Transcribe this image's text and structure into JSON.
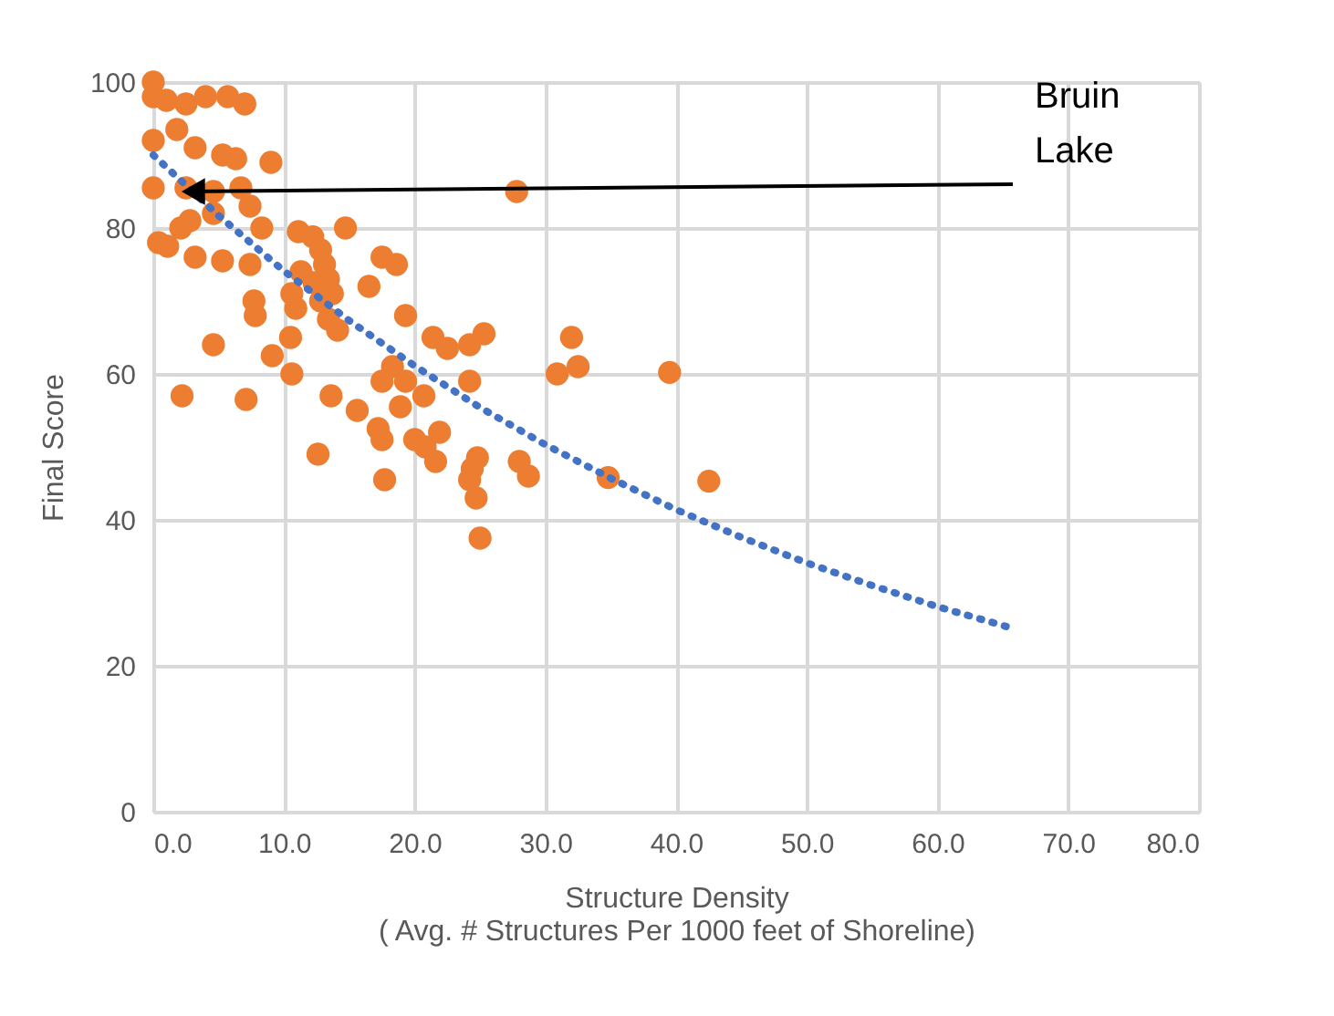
{
  "chart_data": {
    "type": "scatter",
    "xlabel": "Structure Density\n( Avg. # Structures Per 1000 feet of Shoreline)",
    "ylabel": "Final Score",
    "xlim": [
      0,
      80
    ],
    "xticks": [
      {
        "value": 0,
        "label": "0.0"
      },
      {
        "value": 10,
        "label": "10.0"
      },
      {
        "value": 20,
        "label": "20.0"
      },
      {
        "value": 30,
        "label": "30.0"
      },
      {
        "value": 40,
        "label": "40.0"
      },
      {
        "value": 50,
        "label": "50.0"
      },
      {
        "value": 60,
        "label": "60.0"
      },
      {
        "value": 70,
        "label": "70.0"
      },
      {
        "value": 80,
        "label": "80.0"
      }
    ],
    "ylim": [
      0,
      100
    ],
    "yticks": [
      0,
      20,
      40,
      60,
      80,
      100
    ],
    "grid": true,
    "marker": "circle",
    "annotations": [
      {
        "text": "Bruin Lake",
        "x": 2.5,
        "y": 85
      }
    ],
    "series": [
      {
        "color": "#ed7d31",
        "x": [
          0,
          0,
          1,
          2.5,
          4,
          5.7,
          7,
          0,
          1.8,
          3.2,
          5.3,
          6.3,
          9,
          0,
          2.5,
          4.6,
          6.7,
          0.4,
          1.1,
          3.2,
          5.3,
          7.4,
          2.8,
          4.6,
          7.4,
          8.3,
          2.1,
          7.7,
          7.8,
          4.6,
          9.1,
          2.2,
          7.1,
          10.6,
          10.5,
          10.9,
          10.6,
          11.1,
          12.2,
          12.8,
          13.1,
          13.4,
          13.7,
          12.3,
          11.3,
          13.4,
          14.1,
          12.8,
          14.7,
          13.6,
          12.6,
          15.6,
          16.5,
          17.5,
          18.6,
          19.3,
          18.3,
          17.5,
          17.2,
          17.5,
          17.7,
          19.3,
          18.9,
          20.7,
          20,
          21.4,
          22.5,
          20.8,
          21.6,
          21.9,
          24.2,
          25.3,
          24.2,
          24.2,
          24.7,
          25,
          24.8,
          24.4,
          27.8,
          28,
          28.7,
          30.9,
          32,
          32.5,
          34.8,
          39.5,
          42.5
        ],
        "values": [
          100,
          98,
          97.5,
          97,
          98,
          98,
          97,
          92,
          93.5,
          91,
          90,
          89.5,
          89,
          85.5,
          85.5,
          85,
          85.5,
          78,
          77.5,
          76,
          75.5,
          75,
          81,
          82,
          83,
          80,
          80,
          70,
          68,
          64,
          62.5,
          57,
          56.5,
          60,
          65,
          69,
          71,
          79.5,
          78.8,
          77,
          75,
          73,
          71,
          72.5,
          74,
          67.5,
          66,
          70,
          80,
          57,
          49,
          55,
          72,
          76,
          75,
          68,
          61,
          59,
          52.5,
          51,
          45.5,
          59,
          55.5,
          57,
          51,
          65,
          63.5,
          50,
          48,
          52,
          64,
          65.5,
          59,
          45.5,
          43,
          37.5,
          48.5,
          47,
          85,
          48,
          46,
          60,
          65,
          61,
          45.8,
          60.2,
          45.3
        ]
      },
      {
        "type": "line",
        "color": "#4472c4",
        "line_style": "dotted",
        "marker": "none",
        "x": [
          0,
          5,
          10,
          15,
          20,
          25,
          30,
          35,
          40,
          45,
          50,
          55,
          60,
          66
        ],
        "values": [
          90,
          81.7,
          74.1,
          67.3,
          61.1,
          55.4,
          50.3,
          45.7,
          41.4,
          37.6,
          34.1,
          31.0,
          28.1,
          25.0
        ]
      }
    ]
  }
}
